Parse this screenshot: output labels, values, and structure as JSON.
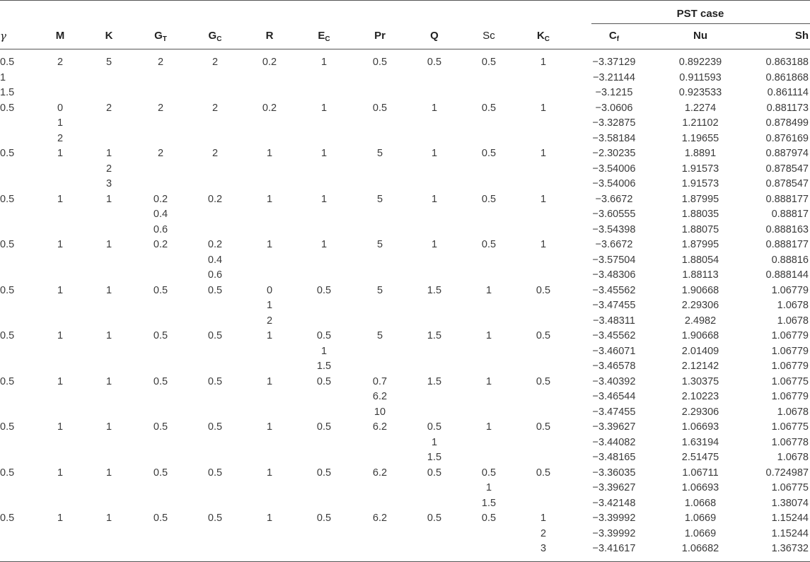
{
  "group_header": "PST case",
  "headers": {
    "gamma": "γ",
    "M": "M",
    "K": "K",
    "GT": {
      "base": "G",
      "sub": "T"
    },
    "GC": {
      "base": "G",
      "sub": "C"
    },
    "R": "R",
    "EC": {
      "base": "E",
      "sub": "C"
    },
    "Pr": "Pr",
    "Q": "Q",
    "Sc": "Sc",
    "KC": {
      "base": "K",
      "sub": "C"
    },
    "Cf": {
      "base": "C",
      "sub": "f"
    },
    "Nu": "Nu",
    "Sh": "Sh"
  },
  "rows": [
    [
      "0.5",
      "2",
      "5",
      "2",
      "2",
      "0.2",
      "1",
      "0.5",
      "0.5",
      "0.5",
      "1",
      "−3.37129",
      "0.892239",
      "0.863188"
    ],
    [
      "1",
      "",
      "",
      "",
      "",
      "",
      "",
      "",
      "",
      "",
      "",
      "−3.21144",
      "0.911593",
      "0.861868"
    ],
    [
      "1.5",
      "",
      "",
      "",
      "",
      "",
      "",
      "",
      "",
      "",
      "",
      "−3.1215",
      "0.923533",
      "0.861114"
    ],
    [
      "0.5",
      "0",
      "2",
      "2",
      "2",
      "0.2",
      "1",
      "0.5",
      "1",
      "0.5",
      "1",
      "−3.0606",
      "1.2274",
      "0.881173"
    ],
    [
      "",
      "1",
      "",
      "",
      "",
      "",
      "",
      "",
      "",
      "",
      "",
      "−3.32875",
      "1.21102",
      "0.878499"
    ],
    [
      "",
      "2",
      "",
      "",
      "",
      "",
      "",
      "",
      "",
      "",
      "",
      "−3.58184",
      "1.19655",
      "0.876169"
    ],
    [
      "0.5",
      "1",
      "1",
      "2",
      "2",
      "1",
      "1",
      "5",
      "1",
      "0.5",
      "1",
      "−2.30235",
      "1.8891",
      "0.887974"
    ],
    [
      "",
      "",
      "2",
      "",
      "",
      "",
      "",
      "",
      "",
      "",
      "",
      "−3.54006",
      "1.91573",
      "0.878547"
    ],
    [
      "",
      "",
      "3",
      "",
      "",
      "",
      "",
      "",
      "",
      "",
      "",
      "−3.54006",
      "1.91573",
      "0.878547"
    ],
    [
      "0.5",
      "1",
      "1",
      "0.2",
      "0.2",
      "1",
      "1",
      "5",
      "1",
      "0.5",
      "1",
      "−3.6672",
      "1.87995",
      "0.888177"
    ],
    [
      "",
      "",
      "",
      "0.4",
      "",
      "",
      "",
      "",
      "",
      "",
      "",
      "−3.60555",
      "1.88035",
      "0.88817"
    ],
    [
      "",
      "",
      "",
      "0.6",
      "",
      "",
      "",
      "",
      "",
      "",
      "",
      "−3.54398",
      "1.88075",
      "0.888163"
    ],
    [
      "0.5",
      "1",
      "1",
      "0.2",
      "0.2",
      "1",
      "1",
      "5",
      "1",
      "0.5",
      "1",
      "−3.6672",
      "1.87995",
      "0.888177"
    ],
    [
      "",
      "",
      "",
      "",
      "0.4",
      "",
      "",
      "",
      "",
      "",
      "",
      "−3.57504",
      "1.88054",
      "0.88816"
    ],
    [
      "",
      "",
      "",
      "",
      "0.6",
      "",
      "",
      "",
      "",
      "",
      "",
      "−3.48306",
      "1.88113",
      "0.888144"
    ],
    [
      "0.5",
      "1",
      "1",
      "0.5",
      "0.5",
      "0",
      "0.5",
      "5",
      "1.5",
      "1",
      "0.5",
      "−3.45562",
      "1.90668",
      "1.06779"
    ],
    [
      "",
      "",
      "",
      "",
      "",
      "1",
      "",
      "",
      "",
      "",
      "",
      "−3.47455",
      "2.29306",
      "1.0678"
    ],
    [
      "",
      "",
      "",
      "",
      "",
      "2",
      "",
      "",
      "",
      "",
      "",
      "−3.48311",
      "2.4982",
      "1.0678"
    ],
    [
      "0.5",
      "1",
      "1",
      "0.5",
      "0.5",
      "1",
      "0.5",
      "5",
      "1.5",
      "1",
      "0.5",
      "−3.45562",
      "1.90668",
      "1.06779"
    ],
    [
      "",
      "",
      "",
      "",
      "",
      "",
      "1",
      "",
      "",
      "",
      "",
      "−3.46071",
      "2.01409",
      "1.06779"
    ],
    [
      "",
      "",
      "",
      "",
      "",
      "",
      "1.5",
      "",
      "",
      "",
      "",
      "−3.46578",
      "2.12142",
      "1.06779"
    ],
    [
      "0.5",
      "1",
      "1",
      "0.5",
      "0.5",
      "1",
      "0.5",
      "0.7",
      "1.5",
      "1",
      "0.5",
      "−3.40392",
      "1.30375",
      "1.06775"
    ],
    [
      "",
      "",
      "",
      "",
      "",
      "",
      "",
      "6.2",
      "",
      "",
      "",
      "−3.46544",
      "2.10223",
      "1.06779"
    ],
    [
      "",
      "",
      "",
      "",
      "",
      "",
      "",
      "10",
      "",
      "",
      "",
      "−3.47455",
      "2.29306",
      "1.0678"
    ],
    [
      "0.5",
      "1",
      "1",
      "0.5",
      "0.5",
      "1",
      "0.5",
      "6.2",
      "0.5",
      "1",
      "0.5",
      "−3.39627",
      "1.06693",
      "1.06775"
    ],
    [
      "",
      "",
      "",
      "",
      "",
      "",
      "",
      "",
      "1",
      "",
      "",
      "−3.44082",
      "1.63194",
      "1.06778"
    ],
    [
      "",
      "",
      "",
      "",
      "",
      "",
      "",
      "",
      "1.5",
      "",
      "",
      "−3.48165",
      "2.51475",
      "1.0678"
    ],
    [
      "0.5",
      "1",
      "1",
      "0.5",
      "0.5",
      "1",
      "0.5",
      "6.2",
      "0.5",
      "0.5",
      "0.5",
      "−3.36035",
      "1.06711",
      "0.724987"
    ],
    [
      "",
      "",
      "",
      "",
      "",
      "",
      "",
      "",
      "",
      "1",
      "",
      "−3.39627",
      "1.06693",
      "1.06775"
    ],
    [
      "",
      "",
      "",
      "",
      "",
      "",
      "",
      "",
      "",
      "1.5",
      "",
      "−3.42148",
      "1.0668",
      "1.38074"
    ],
    [
      "0.5",
      "1",
      "1",
      "0.5",
      "0.5",
      "1",
      "0.5",
      "6.2",
      "0.5",
      "0.5",
      "1",
      "−3.39992",
      "1.0669",
      "1.15244"
    ],
    [
      "",
      "",
      "",
      "",
      "",
      "",
      "",
      "",
      "",
      "",
      "2",
      "−3.39992",
      "1.0669",
      "1.15244"
    ],
    [
      "",
      "",
      "",
      "",
      "",
      "",
      "",
      "",
      "",
      "",
      "3",
      "−3.41617",
      "1.06682",
      "1.36732"
    ]
  ]
}
